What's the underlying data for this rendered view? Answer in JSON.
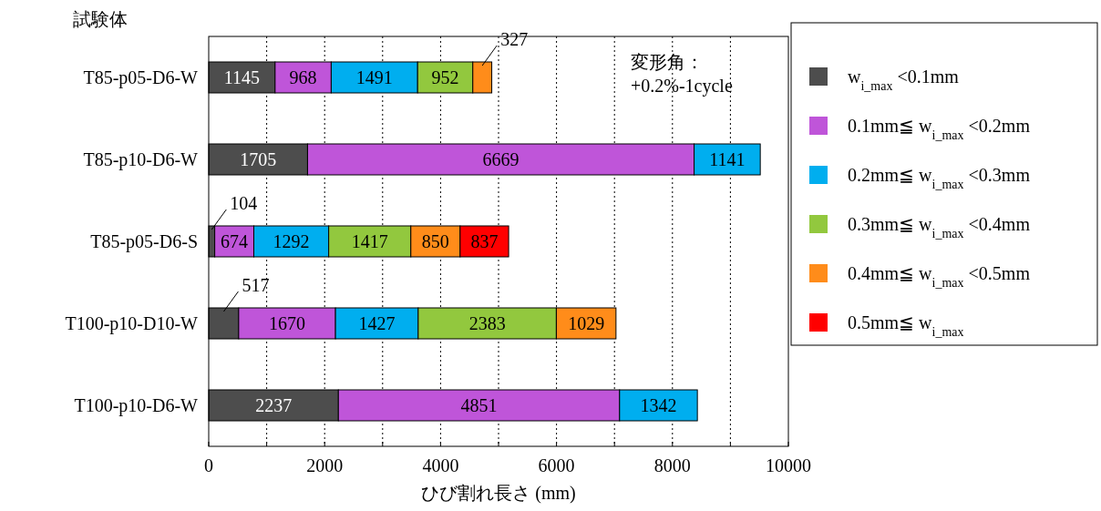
{
  "chart_data": {
    "type": "bar",
    "orientation": "horizontal",
    "stacked": true,
    "data_labels": true,
    "ylabel": "試験体",
    "xlabel": "ひび割れ長さ (mm)",
    "annotations": [
      "変形角：\n+0.2%-1cycle"
    ],
    "categories": [
      "T85-p05-D6-W",
      "T85-p10-D6-W",
      "T85-p05-D6-S",
      "T100-p10-D10-W",
      "T100-p10-D6-W"
    ],
    "series": [
      {
        "name": "w$_{i_max}$ <0.1mm",
        "color": "#4d4d4d",
        "values": [
          1145,
          1705,
          104,
          517,
          2237
        ]
      },
      {
        "name": "0.1mm≦ w$_{i_max}$ <0.2mm",
        "color": "#bf55d9",
        "values": [
          968,
          6669,
          674,
          1670,
          4851
        ]
      },
      {
        "name": "0.2mm≦ w$_{i_max}$ <0.3mm",
        "color": "#00aeef",
        "values": [
          1491,
          1141,
          1292,
          1427,
          1342
        ]
      },
      {
        "name": "0.3mm≦ w$_{i_max}$ <0.4mm",
        "color": "#92c83e",
        "values": [
          952,
          null,
          1417,
          2383,
          null
        ]
      },
      {
        "name": "0.4mm≦ w$_{i_max}$ <0.5mm",
        "color": "#ff8c1a",
        "values": [
          327,
          null,
          850,
          1029,
          null
        ]
      },
      {
        "name": "0.5mm≦ w$_{i_max}$",
        "color": "#ff0000",
        "values": [
          null,
          null,
          837,
          null,
          null
        ]
      }
    ],
    "xlim": [
      0,
      10000
    ],
    "xticks": [
      0,
      {
        "value": 1000,
        "label": null
      },
      2000,
      {
        "value": 3000,
        "label": null
      },
      4000,
      {
        "value": 5000,
        "label": null
      },
      6000,
      {
        "value": 7000,
        "label": null
      },
      8000,
      {
        "value": 9000,
        "label": null
      },
      10000
    ],
    "grid": "x",
    "legend": "right"
  }
}
